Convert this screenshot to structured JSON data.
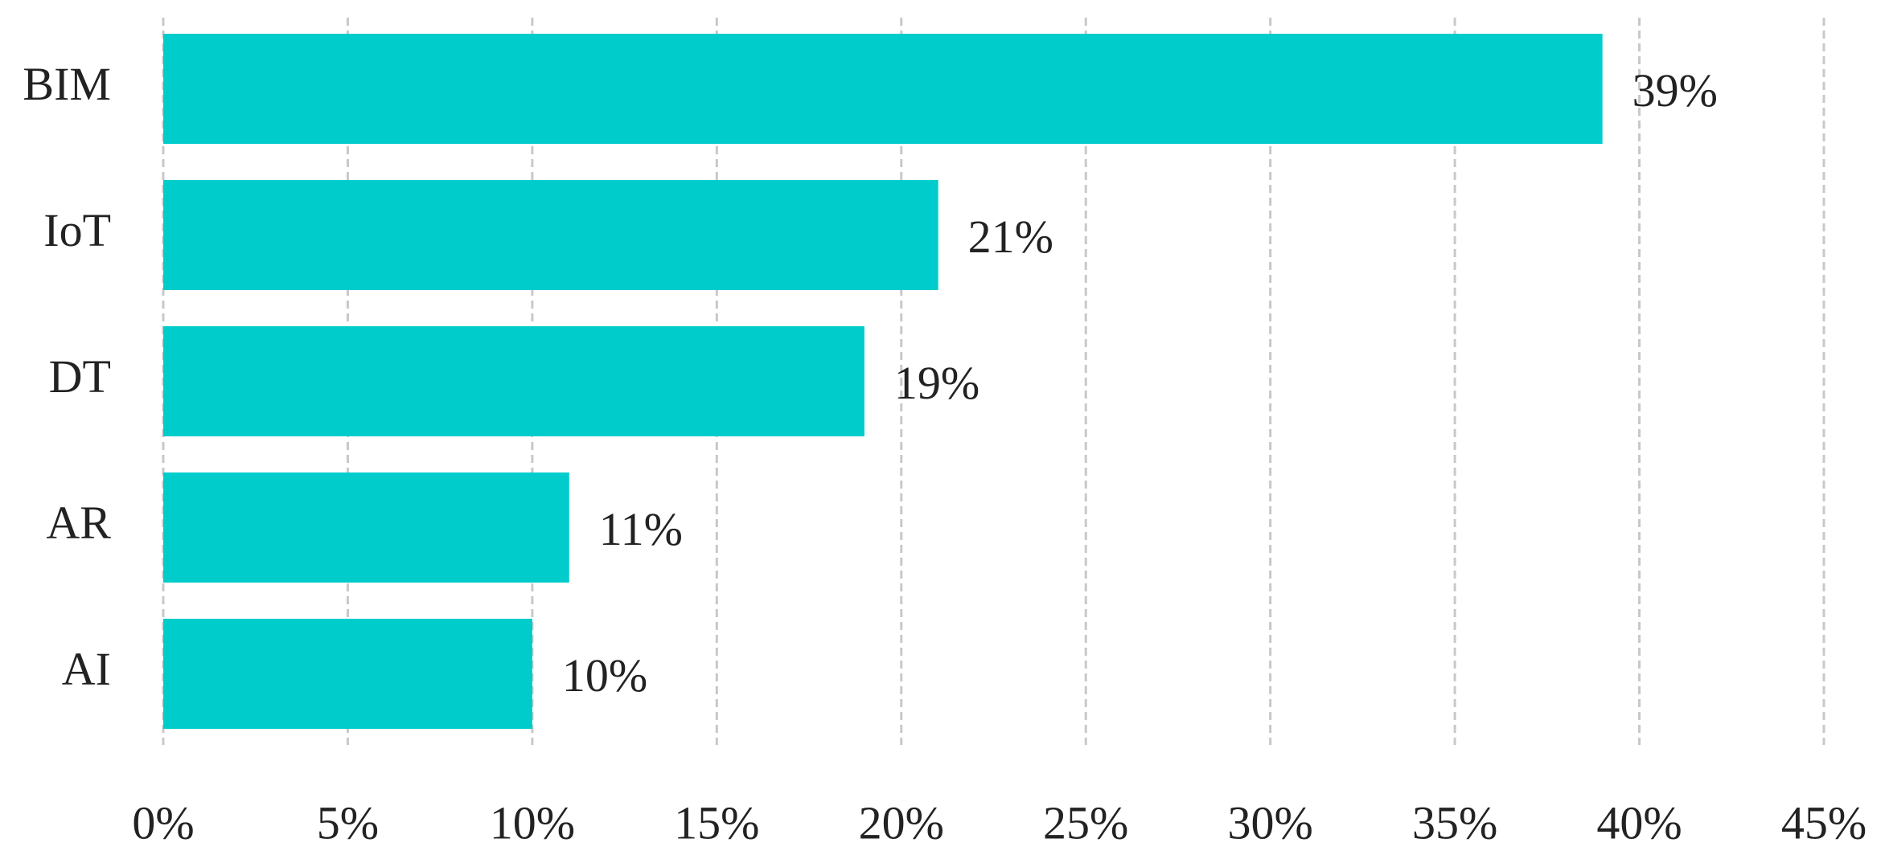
{
  "chart_data": {
    "type": "bar",
    "orientation": "horizontal",
    "categories": [
      "BIM",
      "IoT",
      "DT",
      "AR",
      "AI"
    ],
    "values": [
      39,
      21,
      19,
      11,
      10
    ],
    "value_labels": [
      "39%",
      "21%",
      "19%",
      "11%",
      "10%"
    ],
    "color": "#00cccc",
    "xlim": [
      0,
      45
    ],
    "xticks": [
      {
        "value": 0,
        "label": "0%"
      },
      {
        "value": 5,
        "label": "5%"
      },
      {
        "value": 10,
        "label": "10%"
      },
      {
        "value": 15,
        "label": "15%"
      },
      {
        "value": 20,
        "label": "20%"
      },
      {
        "value": 25,
        "label": "25%"
      },
      {
        "value": 30,
        "label": "30%"
      },
      {
        "value": 35,
        "label": "35%"
      },
      {
        "value": 40,
        "label": "40%"
      },
      {
        "value": 45,
        "label": "45%"
      }
    ],
    "grid": true
  }
}
